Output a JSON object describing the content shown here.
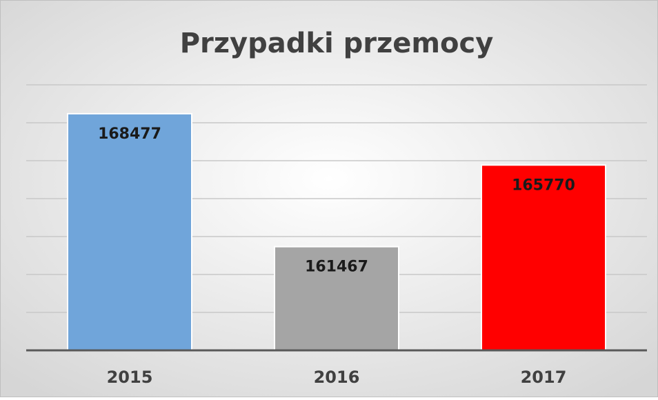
{
  "chart_data": {
    "type": "bar",
    "title": "Przypadki przemocy",
    "categories": [
      "2015",
      "2016",
      "2017"
    ],
    "values": [
      168477,
      161467,
      165770
    ],
    "colors": [
      "#70a5da",
      "#a5a5a5",
      "#ff0000"
    ],
    "ylim": [
      156000,
      170000
    ],
    "yticks": [
      156000,
      158000,
      160000,
      162000,
      164000,
      166000,
      168000,
      170000
    ],
    "grid": true
  }
}
